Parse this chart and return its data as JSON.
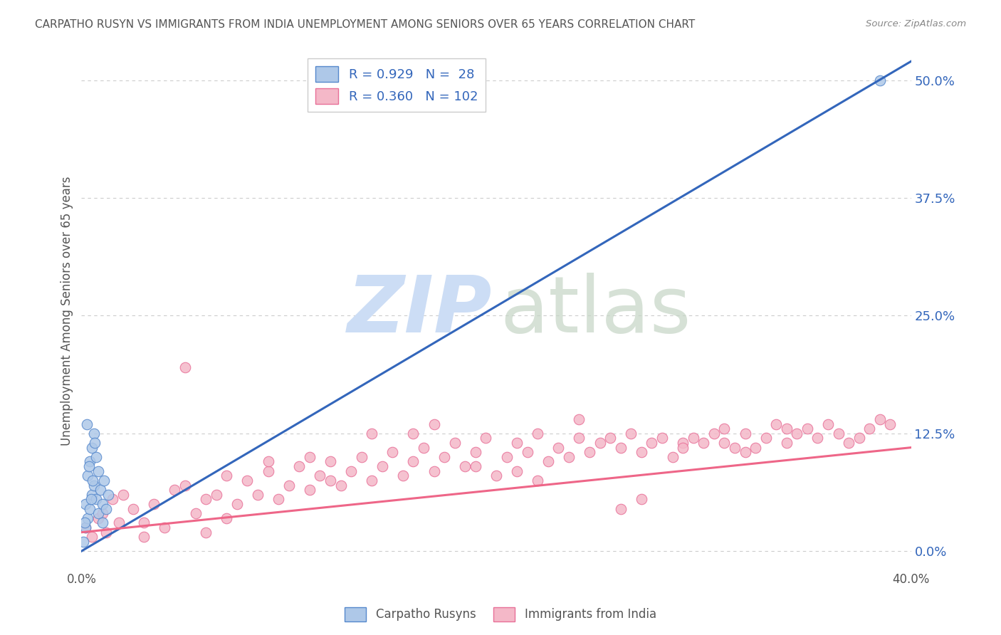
{
  "title": "CARPATHO RUSYN VS IMMIGRANTS FROM INDIA UNEMPLOYMENT AMONG SENIORS OVER 65 YEARS CORRELATION CHART",
  "source": "Source: ZipAtlas.com",
  "ylabel": "Unemployment Among Seniors over 65 years",
  "ytick_values": [
    0.0,
    12.5,
    25.0,
    37.5,
    50.0
  ],
  "xlim": [
    0.0,
    40.0
  ],
  "ylim": [
    -2.0,
    53.0
  ],
  "legend_blue_R": "0.929",
  "legend_blue_N": "28",
  "legend_pink_R": "0.360",
  "legend_pink_N": "102",
  "legend_blue_label": "Carpatho Rusyns",
  "legend_pink_label": "Immigrants from India",
  "blue_color": "#aec8e8",
  "pink_color": "#f4b8c8",
  "blue_scatter_edge": "#5588cc",
  "pink_scatter_edge": "#e87098",
  "blue_line_color": "#3366bb",
  "pink_line_color": "#ee6688",
  "background_color": "#ffffff",
  "grid_color": "#cccccc",
  "title_color": "#555555",
  "legend_text_color": "#3366bb",
  "blue_scatter_x": [
    0.1,
    0.2,
    0.2,
    0.3,
    0.3,
    0.4,
    0.4,
    0.5,
    0.5,
    0.6,
    0.6,
    0.7,
    0.7,
    0.8,
    0.8,
    0.9,
    1.0,
    1.0,
    1.1,
    1.2,
    1.3,
    0.15,
    0.25,
    0.35,
    0.45,
    0.55,
    0.65,
    38.5
  ],
  "blue_scatter_y": [
    1.0,
    2.5,
    5.0,
    3.5,
    8.0,
    4.5,
    9.5,
    6.0,
    11.0,
    7.0,
    12.5,
    5.5,
    10.0,
    4.0,
    8.5,
    6.5,
    5.0,
    3.0,
    7.5,
    4.5,
    6.0,
    3.0,
    13.5,
    9.0,
    5.5,
    7.5,
    11.5,
    50.0
  ],
  "pink_scatter_x": [
    0.2,
    0.5,
    0.8,
    1.0,
    1.2,
    1.5,
    1.8,
    2.0,
    2.5,
    3.0,
    3.5,
    4.0,
    4.5,
    5.0,
    5.5,
    6.0,
    6.5,
    7.0,
    7.5,
    8.0,
    8.5,
    9.0,
    9.5,
    10.0,
    10.5,
    11.0,
    11.5,
    12.0,
    12.5,
    13.0,
    13.5,
    14.0,
    14.5,
    15.0,
    15.5,
    16.0,
    16.5,
    17.0,
    17.5,
    18.0,
    18.5,
    19.0,
    19.5,
    20.0,
    20.5,
    21.0,
    21.5,
    22.0,
    22.5,
    23.0,
    23.5,
    24.0,
    24.5,
    25.0,
    25.5,
    26.0,
    26.5,
    27.0,
    27.5,
    28.0,
    28.5,
    29.0,
    29.5,
    30.0,
    30.5,
    31.0,
    31.5,
    32.0,
    32.5,
    33.0,
    33.5,
    34.0,
    34.5,
    35.0,
    35.5,
    36.0,
    36.5,
    37.0,
    37.5,
    38.0,
    38.5,
    39.0,
    3.0,
    7.0,
    12.0,
    17.0,
    22.0,
    27.0,
    32.0,
    5.0,
    9.0,
    14.0,
    19.0,
    24.0,
    29.0,
    34.0,
    6.0,
    11.0,
    16.0,
    21.0,
    26.0,
    31.0
  ],
  "pink_scatter_y": [
    2.5,
    1.5,
    3.5,
    4.0,
    2.0,
    5.5,
    3.0,
    6.0,
    4.5,
    3.0,
    5.0,
    2.5,
    6.5,
    7.0,
    4.0,
    5.5,
    6.0,
    8.0,
    5.0,
    7.5,
    6.0,
    8.5,
    5.5,
    7.0,
    9.0,
    6.5,
    8.0,
    9.5,
    7.0,
    8.5,
    10.0,
    7.5,
    9.0,
    10.5,
    8.0,
    9.5,
    11.0,
    8.5,
    10.0,
    11.5,
    9.0,
    10.5,
    12.0,
    8.0,
    10.0,
    11.5,
    10.5,
    12.5,
    9.5,
    11.0,
    10.0,
    12.0,
    10.5,
    11.5,
    12.0,
    11.0,
    12.5,
    10.5,
    11.5,
    12.0,
    10.0,
    11.5,
    12.0,
    11.5,
    12.5,
    13.0,
    11.0,
    12.5,
    11.0,
    12.0,
    13.5,
    11.5,
    12.5,
    13.0,
    12.0,
    13.5,
    12.5,
    11.5,
    12.0,
    13.0,
    14.0,
    13.5,
    1.5,
    3.5,
    7.5,
    13.5,
    7.5,
    5.5,
    10.5,
    19.5,
    9.5,
    12.5,
    9.0,
    14.0,
    11.0,
    13.0,
    2.0,
    10.0,
    12.5,
    8.5,
    4.5,
    11.5
  ],
  "blue_reg_x0": 0.0,
  "blue_reg_y0": 0.0,
  "blue_reg_x1": 40.0,
  "blue_reg_y1": 52.0,
  "pink_reg_x0": 0.0,
  "pink_reg_y0": 2.0,
  "pink_reg_x1": 40.0,
  "pink_reg_y1": 11.0
}
